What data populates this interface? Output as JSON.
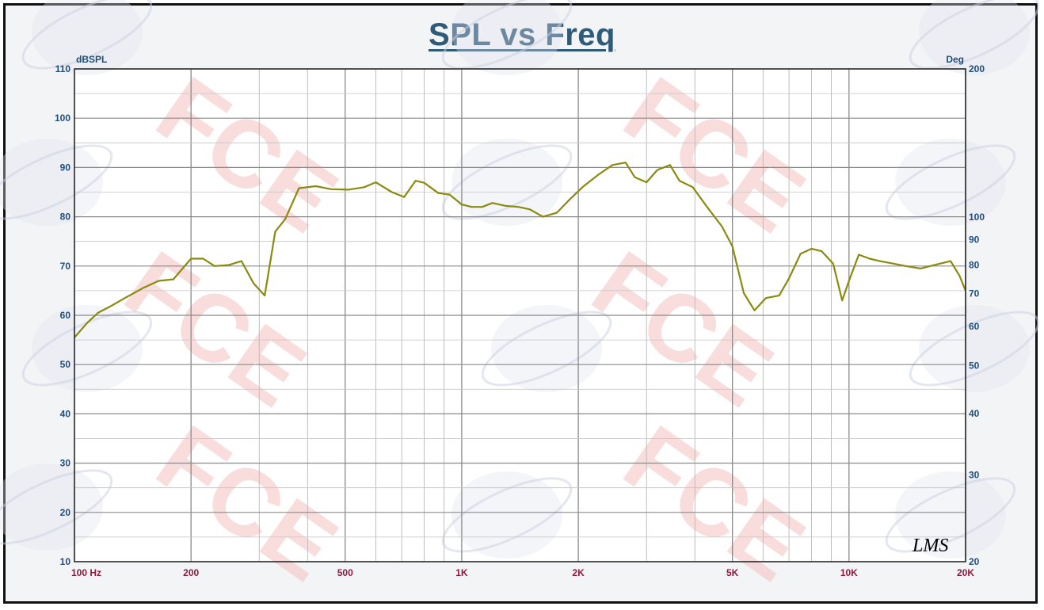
{
  "chart_data": {
    "type": "line",
    "title": "SPL vs Freq",
    "ylabel": "dBSPL",
    "y2label": "Deg",
    "xscale": "log",
    "xlim": [
      100,
      20000
    ],
    "ylim": [
      10,
      110
    ],
    "y2lim": [
      20,
      200
    ],
    "y2scale": "log",
    "grid": true,
    "x_ticks": [
      {
        "value": 100,
        "label": "100  Hz"
      },
      {
        "value": 200,
        "label": "200"
      },
      {
        "value": 500,
        "label": "500"
      },
      {
        "value": 1000,
        "label": "1K"
      },
      {
        "value": 2000,
        "label": "2K"
      },
      {
        "value": 5000,
        "label": "5K"
      },
      {
        "value": 10000,
        "label": "10K"
      },
      {
        "value": 20000,
        "label": "20K"
      }
    ],
    "y_ticks": [
      {
        "value": 110,
        "label": "110"
      },
      {
        "value": 100,
        "label": "100"
      },
      {
        "value": 90,
        "label": "90"
      },
      {
        "value": 80,
        "label": "80"
      },
      {
        "value": 70,
        "label": "70"
      },
      {
        "value": 60,
        "label": "60"
      },
      {
        "value": 50,
        "label": "50"
      },
      {
        "value": 40,
        "label": "40"
      },
      {
        "value": 30,
        "label": "30"
      },
      {
        "value": 20,
        "label": "20"
      },
      {
        "value": 10,
        "label": "10"
      }
    ],
    "y2_ticks": [
      {
        "value": 200,
        "label": "200"
      },
      {
        "value": 100,
        "label": "100"
      },
      {
        "value": 90,
        "label": "90"
      },
      {
        "value": 80,
        "label": "80"
      },
      {
        "value": 70,
        "label": "70"
      },
      {
        "value": 60,
        "label": "60"
      },
      {
        "value": 50,
        "label": "50"
      },
      {
        "value": 40,
        "label": "40"
      },
      {
        "value": 30,
        "label": "30"
      },
      {
        "value": 20,
        "label": "20"
      }
    ],
    "series": [
      {
        "color": "#8a8a10",
        "x": [
          100,
          108,
          115,
          125,
          135,
          150,
          165,
          180,
          200,
          215,
          230,
          250,
          270,
          290,
          310,
          330,
          350,
          380,
          420,
          460,
          510,
          560,
          600,
          660,
          710,
          760,
          800,
          870,
          930,
          1000,
          1060,
          1130,
          1200,
          1300,
          1400,
          1500,
          1620,
          1760,
          1900,
          2050,
          2250,
          2450,
          2650,
          2800,
          3000,
          3200,
          3450,
          3650,
          3950,
          4300,
          4700,
          5000,
          5350,
          5700,
          6100,
          6600,
          7000,
          7500,
          8000,
          8500,
          9100,
          9600,
          10000,
          10600,
          11300,
          12000,
          13000,
          14000,
          15300,
          16800,
          18300,
          19300,
          20000
        ],
        "y": [
          55.5,
          58.5,
          60.5,
          62,
          63.5,
          65.5,
          67,
          67.3,
          71.5,
          71.5,
          70,
          70.2,
          71,
          66.5,
          64,
          77,
          79.5,
          85.8,
          86.2,
          85.6,
          85.5,
          86,
          87,
          85,
          84,
          87.3,
          86.9,
          84.8,
          84.5,
          82.5,
          82,
          82,
          82.8,
          82.2,
          82,
          81.5,
          80,
          80.8,
          83.5,
          86,
          88.5,
          90.5,
          91,
          88,
          87,
          89.5,
          90.5,
          87.3,
          86,
          82,
          78,
          74,
          64.5,
          61,
          63.5,
          64,
          67.5,
          72.5,
          73.5,
          73,
          70.5,
          63,
          67,
          72.3,
          71.5,
          71,
          70.5,
          70,
          69.5,
          70.3,
          71,
          68,
          65
        ]
      }
    ],
    "watermark": "FCE",
    "logo": "LMS"
  }
}
